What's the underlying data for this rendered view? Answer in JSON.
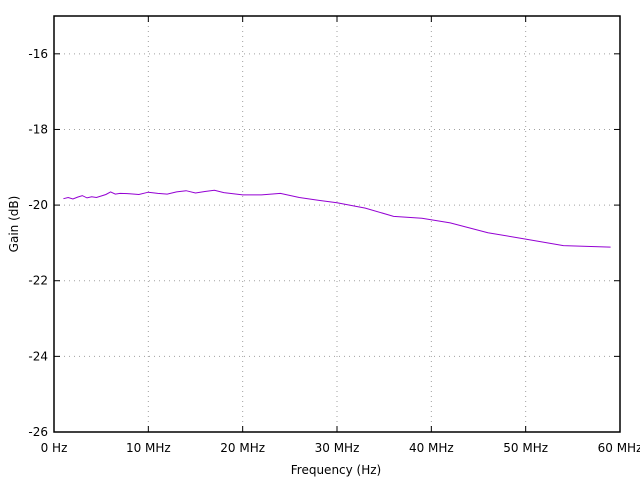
{
  "chart_data": {
    "type": "line",
    "xlabel": "Frequency (Hz)",
    "ylabel": "Gain (dB)",
    "xlim": [
      0,
      60
    ],
    "ylim": [
      -26,
      -15
    ],
    "x_ticks": [
      {
        "value": 0,
        "label": "0  Hz"
      },
      {
        "value": 10,
        "label": "10 MHz"
      },
      {
        "value": 20,
        "label": "20 MHz"
      },
      {
        "value": 30,
        "label": "30 MHz"
      },
      {
        "value": 40,
        "label": "40 MHz"
      },
      {
        "value": 50,
        "label": "50 MHz"
      },
      {
        "value": 60,
        "label": "60 MHz"
      }
    ],
    "y_ticks": [
      {
        "value": -16,
        "label": "-16"
      },
      {
        "value": -18,
        "label": "-18"
      },
      {
        "value": -20,
        "label": "-20"
      },
      {
        "value": -22,
        "label": "-22"
      },
      {
        "value": -24,
        "label": "-24"
      },
      {
        "value": -26,
        "label": "-26"
      }
    ],
    "grid": true,
    "series": [
      {
        "color": "#9400d3",
        "x": [
          1.0,
          1.5,
          2.0,
          2.5,
          3.0,
          3.5,
          4.0,
          4.5,
          5.0,
          5.5,
          6.0,
          6.5,
          7.0,
          8.0,
          9.0,
          10.0,
          11.0,
          12.0,
          13.0,
          14.0,
          15.0,
          16.0,
          17.0,
          18.0,
          20.0,
          22.0,
          24.0,
          26.0,
          28.0,
          30.0,
          33.0,
          36.0,
          39.0,
          42.0,
          46.0,
          50.0,
          54.0,
          59.0
        ],
        "y": [
          -19.83,
          -19.8,
          -19.84,
          -19.79,
          -19.75,
          -19.81,
          -19.78,
          -19.8,
          -19.76,
          -19.72,
          -19.65,
          -19.71,
          -19.69,
          -19.7,
          -19.72,
          -19.66,
          -19.69,
          -19.71,
          -19.65,
          -19.62,
          -19.68,
          -19.64,
          -19.61,
          -19.67,
          -19.73,
          -19.73,
          -19.69,
          -19.8,
          -19.87,
          -19.94,
          -20.08,
          -20.3,
          -20.35,
          -20.47,
          -20.73,
          -20.9,
          -21.07,
          -21.11
        ]
      }
    ]
  }
}
